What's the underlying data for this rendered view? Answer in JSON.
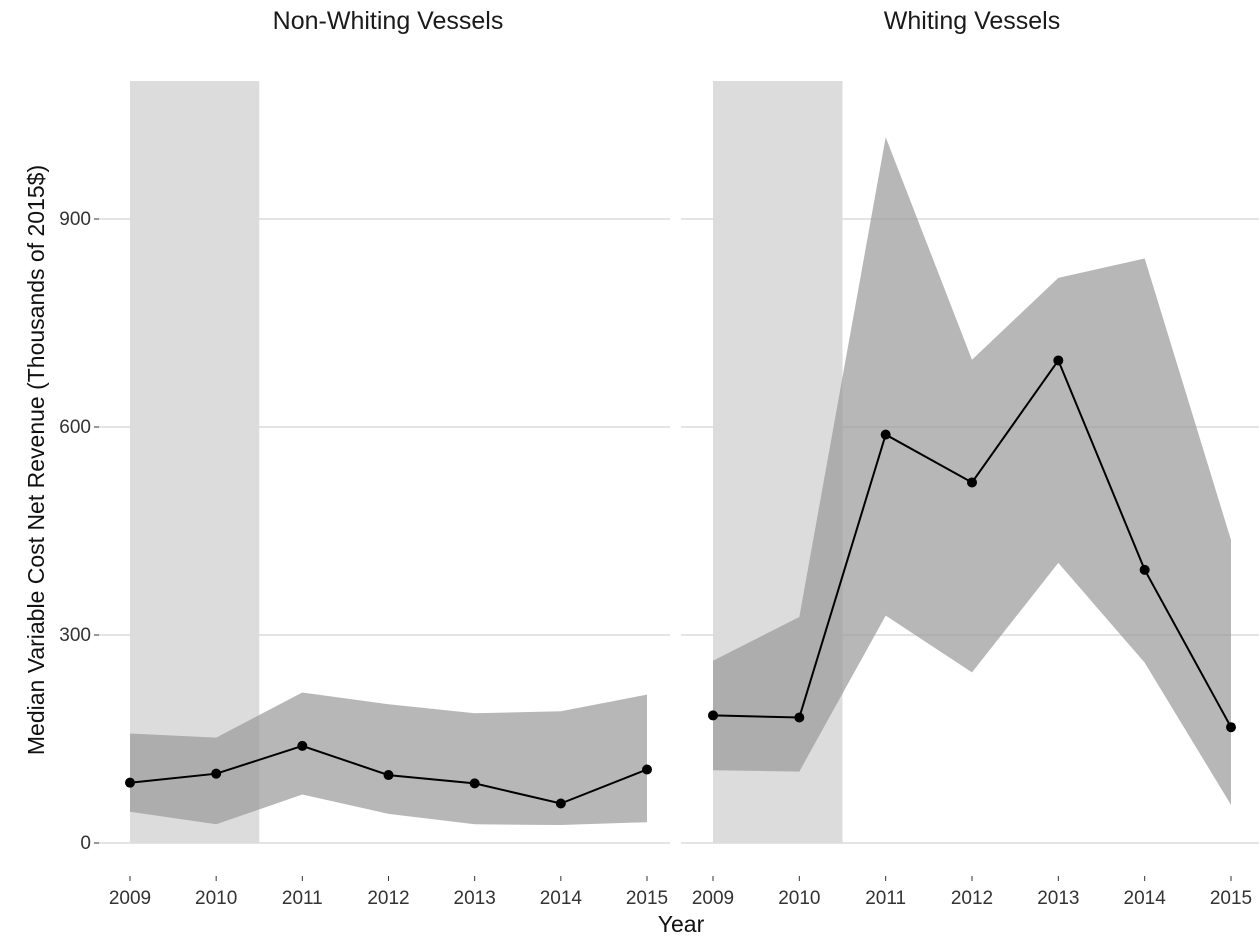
{
  "chart_data": {
    "type": "line",
    "ylabel": "Median Variable Cost Net Revenue (Thousands of 2015$)",
    "xlabel": "Year",
    "x_ticks": [
      "2009",
      "2010",
      "2011",
      "2012",
      "2013",
      "2014",
      "2015"
    ],
    "y_ticks": [
      0,
      300,
      600,
      900
    ],
    "ylim": [
      -40,
      1100
    ],
    "shaded_period": {
      "from": 2009,
      "to": 2010.5
    },
    "grid": "horizontal",
    "colors": {
      "background": "#ffffff",
      "grid": "#d4d4d4",
      "shaded_period": "#dcdcdc",
      "ribbon": "#999999",
      "line": "#000000"
    },
    "panels": [
      {
        "title": "Non-Whiting Vessels",
        "x": [
          2009,
          2010,
          2011,
          2012,
          2013,
          2014,
          2015
        ],
        "median": [
          87,
          100,
          140,
          98,
          86,
          57,
          106
        ],
        "lower": [
          45,
          27,
          70,
          42,
          27,
          26,
          30
        ],
        "upper": [
          158,
          152,
          217,
          200,
          187,
          190,
          214
        ]
      },
      {
        "title": "Whiting Vessels",
        "x": [
          2009,
          2010,
          2011,
          2012,
          2013,
          2014,
          2015
        ],
        "median": [
          184,
          181,
          589,
          520,
          696,
          394,
          167
        ],
        "lower": [
          105,
          103,
          328,
          246,
          404,
          260,
          55
        ],
        "upper": [
          263,
          326,
          1018,
          697,
          815,
          843,
          437
        ]
      }
    ]
  }
}
